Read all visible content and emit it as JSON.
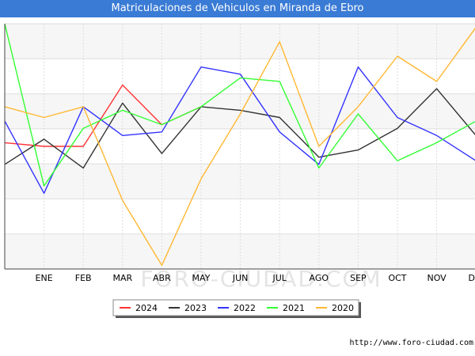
{
  "title": "Matriculaciones de Vehiculos en Miranda de Ebro",
  "watermark": "FORO-CIUDAD.COM",
  "footer_url": "http://www.foro-ciudad.com",
  "chart_data": {
    "type": "line",
    "title": "Matriculaciones de Vehiculos en Miranda de Ebro",
    "xlabel": "",
    "ylabel": "",
    "categories": [
      "",
      "ENE",
      "FEB",
      "MAR",
      "ABR",
      "MAY",
      "JUN",
      "JUL",
      "AGO",
      "SEP",
      "OCT",
      "NOV",
      "DIC"
    ],
    "ylim": [
      0,
      68
    ],
    "grid": true,
    "legend_position": "bottom",
    "series": [
      {
        "name": "2024",
        "color": "#ff3333",
        "values": [
          35,
          34,
          34,
          51,
          40,
          45,
          null,
          null,
          null,
          null,
          null,
          null,
          null
        ]
      },
      {
        "name": "2023",
        "color": "#333333",
        "values": [
          29,
          36,
          28,
          46,
          32,
          45,
          44,
          42,
          31,
          33,
          39,
          50,
          37
        ]
      },
      {
        "name": "2022",
        "color": "#3333ff",
        "values": [
          41,
          21,
          45,
          37,
          38,
          56,
          54,
          38,
          29,
          56,
          42,
          37,
          30
        ]
      },
      {
        "name": "2021",
        "color": "#33ff33",
        "values": [
          68,
          23,
          39,
          44,
          40,
          45,
          53,
          52,
          28,
          43,
          30,
          35,
          41
        ]
      },
      {
        "name": "2020",
        "color": "#ffb833",
        "values": [
          45,
          42,
          45,
          19,
          1,
          25,
          43,
          63,
          34,
          45,
          59,
          52,
          67
        ]
      }
    ]
  }
}
